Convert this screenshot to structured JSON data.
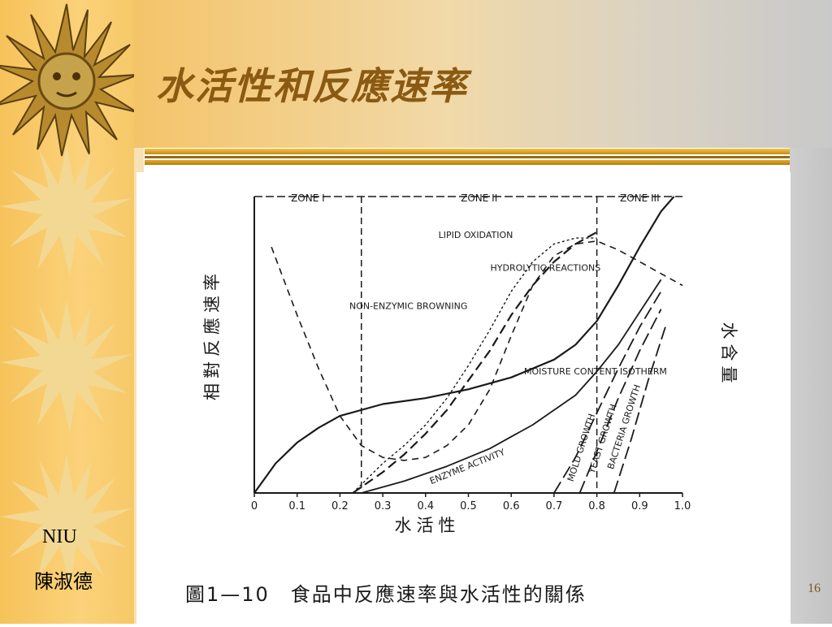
{
  "slide": {
    "title": "水活性和反應速率",
    "footer_org": "NIU",
    "footer_author": "陳淑德",
    "page_number": "16"
  },
  "chart_data": {
    "type": "line",
    "caption": "圖1—10　食品中反應速率與水活性的關係",
    "xlabel": "水活性",
    "ylabel_left": "相對反應速率",
    "ylabel_right": "水含量",
    "xlim": [
      0,
      1.0
    ],
    "ylim": [
      0,
      1.0
    ],
    "x_ticks": [
      "0",
      "0.1",
      "0.2",
      "0.3",
      "0.4",
      "0.5",
      "0.6",
      "0.7",
      "0.8",
      "0.9",
      "1.0"
    ],
    "zones": [
      {
        "label": "ZONE I",
        "from": 0,
        "to": 0.25
      },
      {
        "label": "ZONE II",
        "from": 0.25,
        "to": 0.8
      },
      {
        "label": "ZONE III",
        "from": 0.8,
        "to": 1.0
      }
    ],
    "series": [
      {
        "name": "LIPID OXIDATION",
        "x": [
          0.04,
          0.1,
          0.15,
          0.2,
          0.25,
          0.3,
          0.35,
          0.4,
          0.45,
          0.5,
          0.55,
          0.6,
          0.65,
          0.7,
          0.75,
          0.8,
          0.85,
          0.9,
          0.95,
          1.0
        ],
        "y": [
          0.83,
          0.6,
          0.42,
          0.26,
          0.16,
          0.12,
          0.11,
          0.12,
          0.16,
          0.23,
          0.35,
          0.53,
          0.7,
          0.8,
          0.84,
          0.85,
          0.82,
          0.78,
          0.74,
          0.7
        ]
      },
      {
        "name": "NON-ENZYMIC BROWNING",
        "x": [
          0.23,
          0.3,
          0.35,
          0.4,
          0.45,
          0.5,
          0.55,
          0.6,
          0.65,
          0.7,
          0.75,
          0.8
        ],
        "y": [
          0.0,
          0.1,
          0.16,
          0.23,
          0.32,
          0.43,
          0.55,
          0.68,
          0.78,
          0.84,
          0.86,
          0.86
        ]
      },
      {
        "name": "HYDROLYTIC REACTIONS",
        "x": [
          0.23,
          0.3,
          0.35,
          0.4,
          0.45,
          0.5,
          0.55,
          0.6,
          0.65,
          0.7,
          0.75,
          0.8
        ],
        "y": [
          0.0,
          0.07,
          0.13,
          0.2,
          0.28,
          0.38,
          0.48,
          0.6,
          0.7,
          0.78,
          0.84,
          0.88
        ]
      },
      {
        "name": "MOISTURE CONTENT ISOTHERM",
        "x": [
          0,
          0.05,
          0.1,
          0.15,
          0.2,
          0.3,
          0.4,
          0.5,
          0.6,
          0.7,
          0.75,
          0.8,
          0.85,
          0.9,
          0.95,
          0.98
        ],
        "y": [
          0.0,
          0.1,
          0.17,
          0.22,
          0.26,
          0.3,
          0.32,
          0.35,
          0.39,
          0.45,
          0.5,
          0.58,
          0.7,
          0.83,
          0.95,
          1.0
        ]
      },
      {
        "name": "ENZYME ACTIVITY",
        "x": [
          0.25,
          0.35,
          0.45,
          0.55,
          0.65,
          0.75,
          0.8,
          0.85,
          0.9,
          0.95
        ],
        "y": [
          0.0,
          0.04,
          0.09,
          0.15,
          0.23,
          0.33,
          0.41,
          0.5,
          0.61,
          0.72
        ]
      },
      {
        "name": "MOLD GROWTH",
        "x": [
          0.7,
          0.75,
          0.8,
          0.85,
          0.9,
          0.95
        ],
        "y": [
          0.0,
          0.12,
          0.27,
          0.42,
          0.56,
          0.68
        ]
      },
      {
        "name": "YEAST GROWTH",
        "x": [
          0.76,
          0.8,
          0.85,
          0.9,
          0.95
        ],
        "y": [
          0.0,
          0.14,
          0.32,
          0.48,
          0.62
        ]
      },
      {
        "name": "BACTERIA GROWTH",
        "x": [
          0.84,
          0.88,
          0.92,
          0.96
        ],
        "y": [
          0.0,
          0.18,
          0.38,
          0.56
        ]
      }
    ],
    "zone_labels": [
      "ZONE I",
      "ZONE II",
      "ZONE III"
    ],
    "colors": {
      "ink": "#1a1a1a",
      "title": "#8b5a12",
      "gold": "#f6c25a"
    }
  }
}
